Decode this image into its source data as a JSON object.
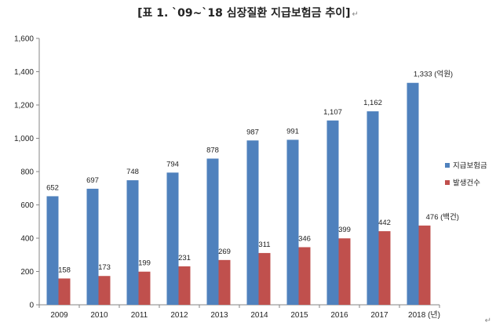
{
  "title": "[표 1. `09~`18 심장질환 지급보험금 추이]",
  "return_mark": "↵",
  "chart_data": {
    "type": "bar",
    "title": "[표 1. `09~`18 심장질환 지급보험금 추이]",
    "categories": [
      "2009",
      "2010",
      "2011",
      "2012",
      "2013",
      "2014",
      "2015",
      "2016",
      "2017",
      "2018 (년)"
    ],
    "series": [
      {
        "name": "지급보험금",
        "color": "#4f81bd",
        "values": [
          652,
          697,
          748,
          794,
          878,
          987,
          991,
          1107,
          1162,
          1333
        ],
        "labels": [
          "652",
          "697",
          "748",
          "794",
          "878",
          "987",
          "991",
          "1,107",
          "1,162",
          "1,333 (억원)"
        ]
      },
      {
        "name": "발생건수",
        "color": "#c0504d",
        "values": [
          158,
          173,
          199,
          231,
          269,
          311,
          346,
          399,
          442,
          476
        ],
        "labels": [
          "158",
          "173",
          "199",
          "231",
          "269",
          "311",
          "346",
          "399",
          "442",
          "476 (백건)"
        ]
      }
    ],
    "ylim": [
      0,
      1600
    ],
    "yticks": [
      0,
      200,
      400,
      600,
      800,
      1000,
      1200,
      1400,
      1600
    ],
    "ytick_labels": [
      "0",
      "200",
      "400",
      "600",
      "800",
      "1,000",
      "1,200",
      "1,400",
      "1,600"
    ],
    "grid": false,
    "legend_position": "right",
    "xlabel": "",
    "ylabel": ""
  }
}
